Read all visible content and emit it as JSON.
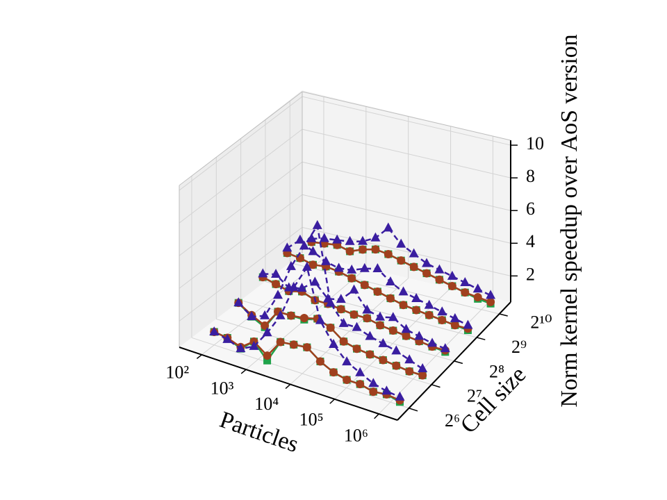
{
  "chart_data": {
    "type": "line3d",
    "xlabel": "Particles",
    "ylabel": "Cell size",
    "zlabel": "Norm kernel speedup over AoS version",
    "x": [
      100,
      200,
      400,
      800,
      1600,
      3200,
      6400,
      12800,
      25600,
      51200,
      102400,
      204800,
      409600,
      819200,
      1638400
    ],
    "xlog": true,
    "xlim": [
      31,
      2630000
    ],
    "xticks": [
      {
        "value": 100,
        "label": "10²"
      },
      {
        "value": 1000,
        "label": "10³"
      },
      {
        "value": 10000,
        "label": "10⁴"
      },
      {
        "value": 100000,
        "label": "10⁵"
      },
      {
        "value": 1000000,
        "label": "10⁶"
      }
    ],
    "ylog": true,
    "ylim": [
      45,
      1450
    ],
    "yticks": [
      {
        "value": 64,
        "label": "2⁶"
      },
      {
        "value": 128,
        "label": "2⁷"
      },
      {
        "value": 256,
        "label": "2⁸"
      },
      {
        "value": 512,
        "label": "2⁹"
      },
      {
        "value": 1024,
        "label": "2¹⁰"
      }
    ],
    "zlim": [
      0.4,
      10.3
    ],
    "zticks": [
      2,
      4,
      6,
      8,
      10
    ],
    "grid": true,
    "series": [
      {
        "y": 64,
        "color": "#1fa34a",
        "marker": "square",
        "linestyle": "solid",
        "values": [
          1.2,
          1.1,
          0.7,
          1.4,
          0.5,
          1.9,
          2.0,
          2.1,
          1.5,
          1.1,
          0.9,
          0.9,
          0.7,
          0.8,
          0.6
        ]
      },
      {
        "y": 64,
        "color": "#a0401e",
        "marker": "circle",
        "linestyle": "solid",
        "values": [
          1.2,
          1.1,
          0.8,
          1.4,
          0.8,
          1.9,
          2.0,
          2.1,
          1.5,
          1.1,
          0.9,
          0.9,
          0.7,
          0.8,
          0.7
        ]
      },
      {
        "y": 64,
        "color": "#3a1ea0",
        "marker": "triangle",
        "linestyle": "dashed",
        "values": [
          1.2,
          1.0,
          0.7,
          1.1,
          2.2,
          3.5,
          5.5,
          7.0,
          4.0,
          2.8,
          2.0,
          1.6,
          1.2,
          1.0,
          0.9
        ]
      },
      {
        "y": 128,
        "color": "#1fa34a",
        "marker": "square",
        "linestyle": "solid",
        "values": [
          1.8,
          1.2,
          0.8,
          2.0,
          2.0,
          2.0,
          2.3,
          2.0,
          1.4,
          1.2,
          1.1,
          1.0,
          0.9,
          0.8,
          0.8
        ]
      },
      {
        "y": 128,
        "color": "#a0401e",
        "marker": "circle",
        "linestyle": "solid",
        "values": [
          1.8,
          1.3,
          0.9,
          2.0,
          2.0,
          2.1,
          2.3,
          2.0,
          1.4,
          1.2,
          1.1,
          1.0,
          0.9,
          0.8,
          0.8
        ]
      },
      {
        "y": 128,
        "color": "#3a1ea0",
        "marker": "triangle",
        "linestyle": "dashed",
        "values": [
          1.8,
          1.2,
          1.5,
          3.0,
          5.0,
          6.5,
          8.0,
          3.5,
          2.5,
          2.5,
          2.2,
          2.0,
          1.8,
          1.5,
          1.2
        ]
      },
      {
        "y": 256,
        "color": "#1fa34a",
        "marker": "square",
        "linestyle": "solid",
        "values": [
          2.2,
          2.0,
          1.8,
          2.0,
          1.7,
          1.7,
          1.6,
          1.5,
          1.5,
          1.3,
          1.2,
          1.1,
          1.0,
          0.9,
          0.8
        ]
      },
      {
        "y": 256,
        "color": "#a0401e",
        "marker": "circle",
        "linestyle": "solid",
        "values": [
          2.2,
          2.0,
          1.8,
          2.0,
          1.7,
          1.7,
          1.6,
          1.5,
          1.5,
          1.3,
          1.2,
          1.1,
          1.0,
          0.9,
          0.9
        ]
      },
      {
        "y": 256,
        "color": "#3a1ea0",
        "marker": "triangle",
        "linestyle": "dashed",
        "values": [
          2.4,
          2.6,
          2.0,
          2.2,
          2.8,
          2.0,
          2.2,
          3.0,
          2.0,
          1.8,
          2.0,
          1.5,
          1.3,
          1.1,
          1.0
        ]
      },
      {
        "y": 512,
        "color": "#1fa34a",
        "marker": "square",
        "linestyle": "solid",
        "values": [
          2.5,
          2.4,
          2.2,
          2.3,
          2.2,
          2.0,
          1.8,
          1.6,
          1.4,
          1.2,
          1.1,
          1.0,
          0.9,
          0.8,
          0.7
        ]
      },
      {
        "y": 512,
        "color": "#a0401e",
        "marker": "circle",
        "linestyle": "solid",
        "values": [
          2.5,
          2.4,
          2.2,
          2.3,
          2.2,
          2.0,
          1.8,
          1.6,
          1.4,
          1.2,
          1.1,
          1.0,
          0.9,
          0.8,
          0.8
        ]
      },
      {
        "y": 512,
        "color": "#3a1ea0",
        "marker": "triangle",
        "linestyle": "dashed",
        "values": [
          2.8,
          3.5,
          3.0,
          2.6,
          2.4,
          2.5,
          2.8,
          3.0,
          2.4,
          2.0,
          1.8,
          1.6,
          1.4,
          1.2,
          1.0
        ]
      },
      {
        "y": 1024,
        "color": "#1fa34a",
        "marker": "square",
        "linestyle": "solid",
        "values": [
          2.0,
          2.1,
          2.2,
          2.0,
          2.3,
          2.5,
          2.4,
          2.2,
          2.0,
          1.8,
          1.6,
          1.4,
          1.2,
          1.0,
          0.9
        ]
      },
      {
        "y": 1024,
        "color": "#a0401e",
        "marker": "circle",
        "linestyle": "solid",
        "values": [
          2.0,
          2.1,
          2.2,
          2.0,
          2.3,
          2.5,
          2.4,
          2.2,
          2.0,
          1.8,
          1.6,
          1.4,
          1.2,
          1.1,
          1.0
        ]
      },
      {
        "y": 1024,
        "color": "#3a1ea0",
        "marker": "triangle",
        "linestyle": "dashed",
        "values": [
          2.2,
          2.4,
          2.5,
          2.6,
          2.8,
          3.2,
          4.0,
          3.2,
          2.8,
          2.4,
          2.2,
          2.0,
          1.8,
          1.6,
          1.4
        ]
      }
    ]
  }
}
